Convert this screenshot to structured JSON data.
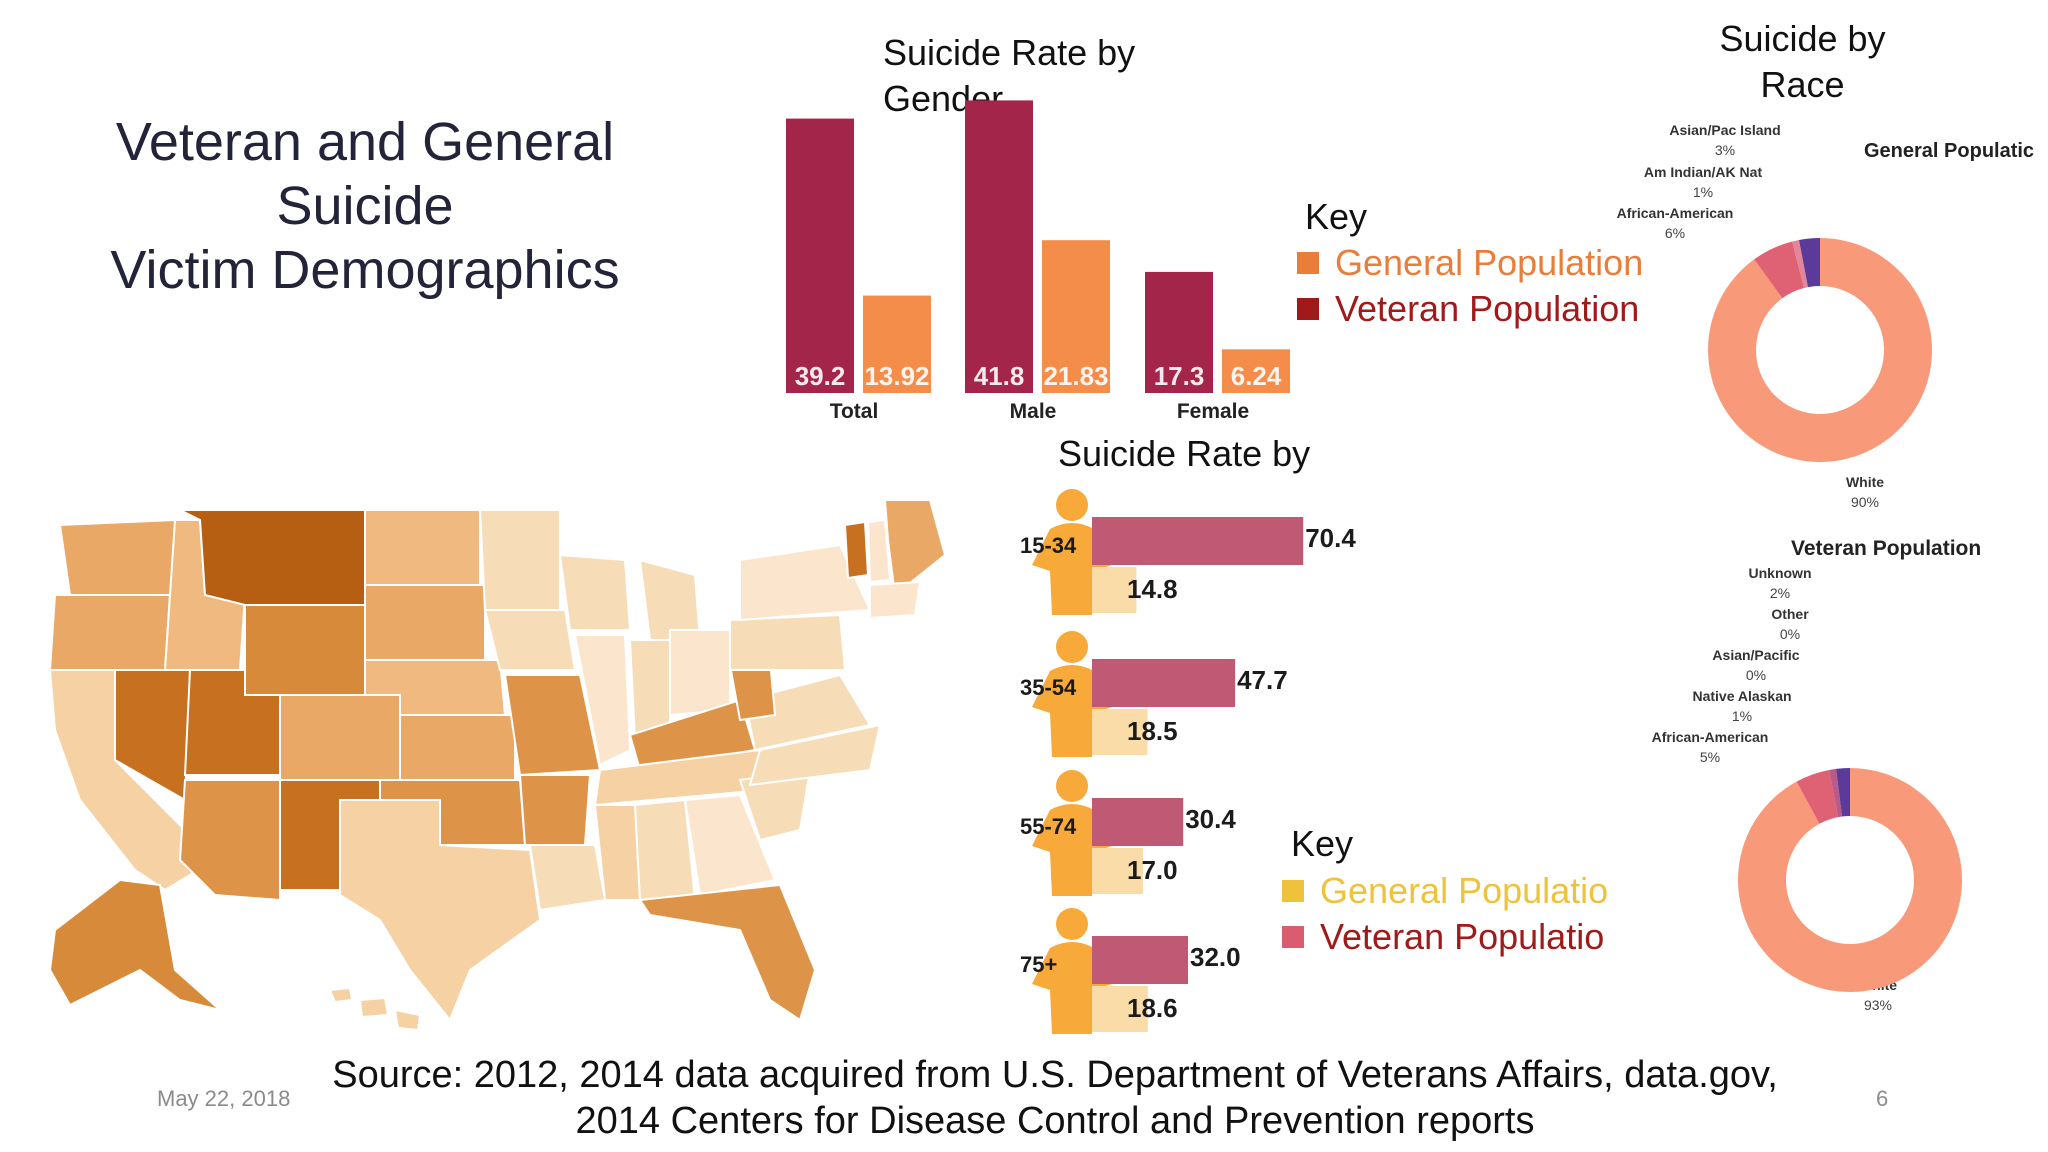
{
  "slide": {
    "title_lines": [
      "Veteran and General",
      "Suicide",
      "Victim Demographics"
    ],
    "date": "May 22, 2018",
    "page_number": "6",
    "source_line1": "Source: 2012, 2014 data acquired from U.S. Department of Veterans Affairs, data.gov,",
    "source_line2": "2014 Centers for Disease Control and Prevention reports"
  },
  "gender_chart": {
    "title_line1": "Suicide Rate by",
    "title_line2": "Gender",
    "key_title": "Key",
    "key_general": "General Population",
    "key_veteran": "Veteran Population"
  },
  "age_chart": {
    "title": "Suicide Rate by",
    "key_title": "Key",
    "key_general": "General Populatio",
    "key_veteran": "Veteran Populatio"
  },
  "race_charts": {
    "title_line1": "Suicide by",
    "title_line2": "Race",
    "general_heading": "General Populatic",
    "veteran_heading": "Veteran Population",
    "general_labels": [
      {
        "name": "Asian/Pac Island",
        "pct": "3%"
      },
      {
        "name": "Am Indian/AK Nat",
        "pct": "1%"
      },
      {
        "name": "African-American",
        "pct": "6%"
      },
      {
        "name": "White",
        "pct": "90%"
      }
    ],
    "veteran_labels": [
      {
        "name": "Unknown",
        "pct": "2%"
      },
      {
        "name": "Other",
        "pct": "0%"
      },
      {
        "name": "Asian/Pacific",
        "pct": "0%"
      },
      {
        "name": "Native Alaskan",
        "pct": "1%"
      },
      {
        "name": "African-American",
        "pct": "5%"
      },
      {
        "name": "White",
        "pct": "93%"
      }
    ]
  },
  "colors": {
    "veteran_bar": "#a4254a",
    "general_bar": "#f58d4a",
    "key_general_orange": "#ea7d3a",
    "key_veteran_red": "#a11a1a",
    "age_veteran": "#c05a74",
    "age_general": "#f9dca7",
    "age_key_general": "#eec23a",
    "age_key_veteran": "#d95d6e",
    "donut_white": "#f89a7a",
    "donut_black": "#df6274",
    "donut_asian": "#5b3a9a",
    "map_light": "#f7dcb8",
    "map_mid": "#e9a865",
    "map_dark": "#c77020"
  },
  "chart_data": [
    {
      "type": "bar",
      "title": "Suicide Rate by Gender",
      "categories": [
        "Total",
        "Male",
        "Female"
      ],
      "series": [
        {
          "name": "Veteran Population",
          "values": [
            39.2,
            41.8,
            17.3
          ]
        },
        {
          "name": "General Population",
          "values": [
            13.92,
            21.83,
            6.24
          ]
        }
      ],
      "value_labels": [
        [
          "39.2",
          "41.8",
          "17.3"
        ],
        [
          "13.92",
          "21.83",
          "6.24"
        ]
      ]
    },
    {
      "type": "bar",
      "orientation": "horizontal",
      "title": "Suicide Rate by",
      "categories": [
        "15-34",
        "35-54",
        "55-74",
        "75+"
      ],
      "series": [
        {
          "name": "Veteran Populatio",
          "values": [
            70.4,
            47.7,
            30.4,
            32.0
          ]
        },
        {
          "name": "General Populatio",
          "values": [
            14.8,
            18.5,
            17.0,
            18.6
          ]
        }
      ],
      "value_labels": [
        [
          "70.4",
          "47.7",
          "30.4",
          "32.0"
        ],
        [
          "14.8",
          "18.5",
          "17.0",
          "18.6"
        ]
      ]
    },
    {
      "type": "pie",
      "title": "General Populatic",
      "labels": [
        "White",
        "African-American",
        "Am Indian/AK Nat",
        "Asian/Pac Island"
      ],
      "values": [
        90,
        6,
        1,
        3
      ]
    },
    {
      "type": "pie",
      "title": "Veteran Population",
      "labels": [
        "White",
        "African-American",
        "Native Alaskan",
        "Asian/Pacific",
        "Other",
        "Unknown"
      ],
      "values": [
        93,
        5,
        1,
        0,
        0,
        2
      ]
    }
  ]
}
